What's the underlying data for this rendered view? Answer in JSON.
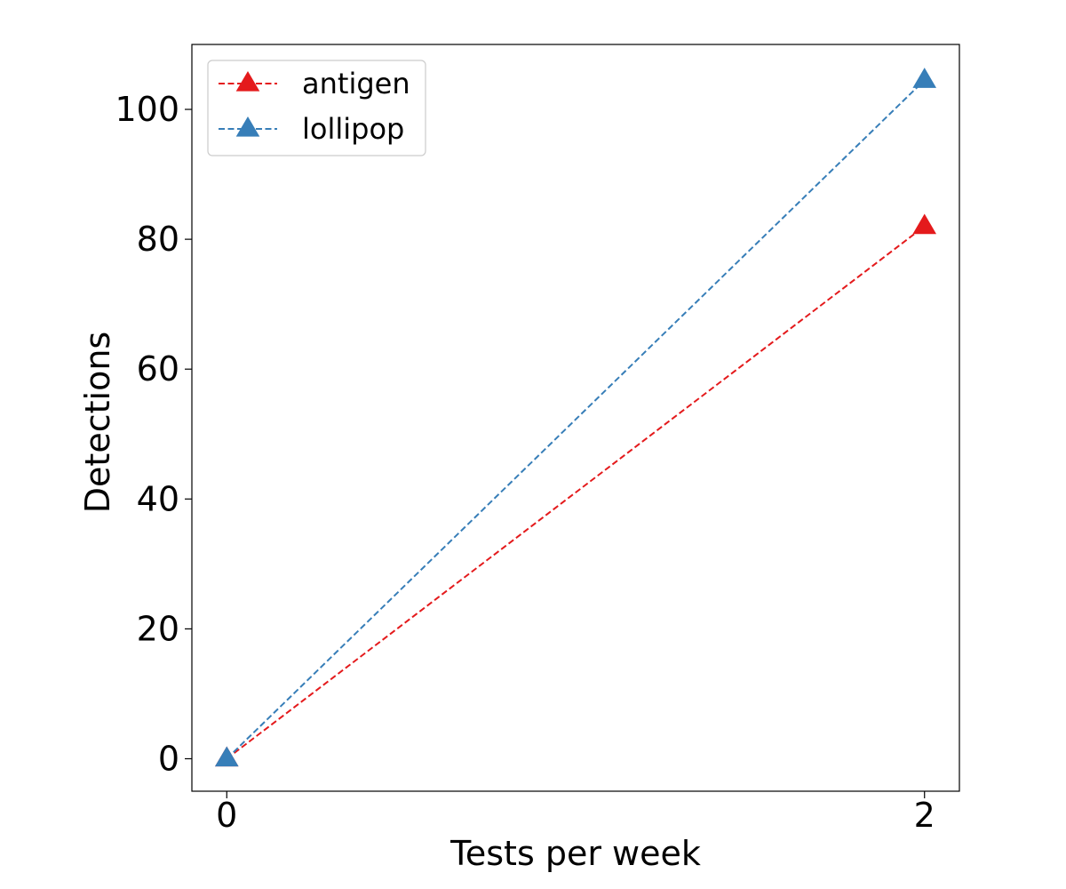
{
  "chart_data": {
    "type": "line",
    "title": "",
    "xlabel": "Tests per week",
    "ylabel": "Detections",
    "x": [
      0,
      2
    ],
    "xticks": [
      "0",
      "2"
    ],
    "yticks": [
      "0",
      "20",
      "40",
      "60",
      "80",
      "100"
    ],
    "xlim": [
      -0.1,
      2.1
    ],
    "ylim": [
      -5,
      110
    ],
    "grid": false,
    "legend_position": "top-left",
    "series": [
      {
        "name": "antigen",
        "color": "#e41a1c",
        "linestyle": "dashed",
        "marker": "triangle-up",
        "values": [
          0,
          82
        ]
      },
      {
        "name": "lollipop",
        "color": "#377eb8",
        "linestyle": "dashed",
        "marker": "triangle-up",
        "values": [
          0,
          104.5
        ]
      }
    ]
  }
}
